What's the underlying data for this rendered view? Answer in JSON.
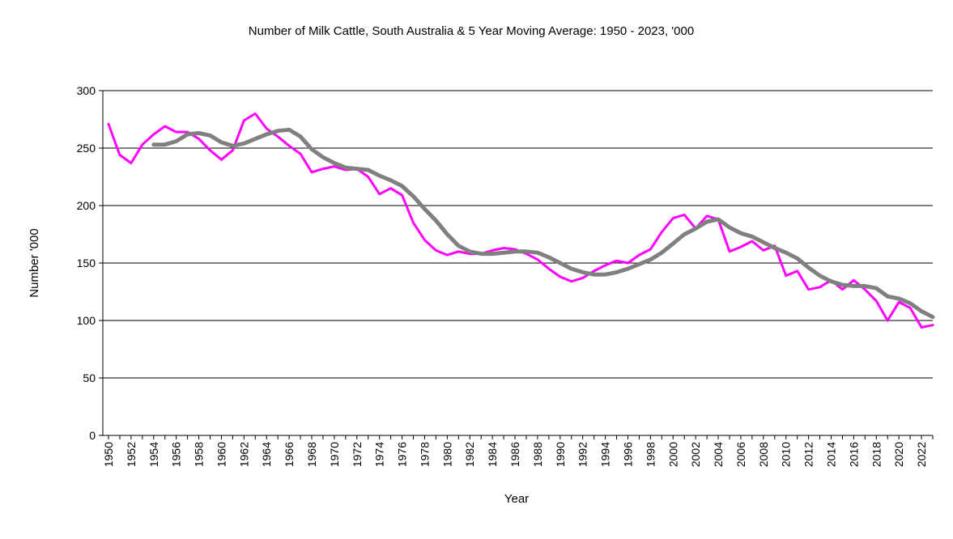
{
  "chart_data": {
    "type": "line",
    "title": "Number of Milk Cattle, South Australia & 5 Year Moving Average: 1950 - 2023, '000",
    "xlabel": "Year",
    "ylabel": "Number '000",
    "ylim": [
      0,
      300
    ],
    "yticks": [
      0,
      50,
      100,
      150,
      200,
      250,
      300
    ],
    "xlim": [
      1950,
      2023
    ],
    "xticks": [
      1950,
      1952,
      1954,
      1956,
      1958,
      1960,
      1962,
      1964,
      1966,
      1968,
      1970,
      1972,
      1974,
      1976,
      1978,
      1980,
      1982,
      1984,
      1986,
      1988,
      1990,
      1992,
      1994,
      1996,
      1998,
      2000,
      2002,
      2004,
      2006,
      2008,
      2010,
      2012,
      2014,
      2016,
      2018,
      2020,
      2022
    ],
    "grid": true,
    "series": [
      {
        "name": "Number of Milk Cattle",
        "color": "#FF00FF",
        "x": [
          1950,
          1951,
          1952,
          1953,
          1954,
          1955,
          1956,
          1957,
          1958,
          1959,
          1960,
          1961,
          1962,
          1963,
          1964,
          1965,
          1966,
          1967,
          1968,
          1969,
          1970,
          1971,
          1972,
          1973,
          1974,
          1975,
          1976,
          1977,
          1978,
          1979,
          1980,
          1981,
          1982,
          1983,
          1984,
          1985,
          1986,
          1987,
          1988,
          1989,
          1990,
          1991,
          1992,
          1993,
          1994,
          1995,
          1996,
          1997,
          1998,
          1999,
          2000,
          2001,
          2002,
          2003,
          2004,
          2005,
          2006,
          2007,
          2008,
          2009,
          2010,
          2011,
          2012,
          2013,
          2014,
          2015,
          2016,
          2017,
          2018,
          2019,
          2020,
          2021,
          2022,
          2023
        ],
        "values": [
          271,
          244,
          237,
          253,
          262,
          269,
          264,
          264,
          258,
          248,
          240,
          248,
          274,
          280,
          267,
          260,
          252,
          245,
          229,
          232,
          234,
          231,
          232,
          225,
          210,
          215,
          209,
          185,
          170,
          161,
          157,
          160,
          158,
          158,
          161,
          163,
          162,
          158,
          153,
          145,
          138,
          134,
          137,
          143,
          148,
          152,
          150,
          157,
          162,
          177,
          189,
          192,
          180,
          191,
          188,
          160,
          164,
          169,
          161,
          165,
          139,
          143,
          127,
          129,
          135,
          127,
          135,
          127,
          117,
          100,
          116,
          111,
          94,
          96
        ]
      },
      {
        "name": "5 Year Moving Average",
        "color": "#808080",
        "x": [
          1954,
          1955,
          1956,
          1957,
          1958,
          1959,
          1960,
          1961,
          1962,
          1963,
          1964,
          1965,
          1966,
          1967,
          1968,
          1969,
          1970,
          1971,
          1972,
          1973,
          1974,
          1975,
          1976,
          1977,
          1978,
          1979,
          1980,
          1981,
          1982,
          1983,
          1984,
          1985,
          1986,
          1987,
          1988,
          1989,
          1990,
          1991,
          1992,
          1993,
          1994,
          1995,
          1996,
          1997,
          1998,
          1999,
          2000,
          2001,
          2002,
          2003,
          2004,
          2005,
          2006,
          2007,
          2008,
          2009,
          2010,
          2011,
          2012,
          2013,
          2014,
          2015,
          2016,
          2017,
          2018,
          2019,
          2020,
          2021,
          2022,
          2023
        ],
        "values": [
          253,
          253,
          256,
          262,
          263,
          261,
          255,
          252,
          254,
          258,
          262,
          265,
          266,
          260,
          249,
          242,
          237,
          233,
          232,
          231,
          226,
          222,
          217,
          208,
          197,
          187,
          175,
          165,
          160,
          158,
          158,
          159,
          160,
          160,
          159,
          155,
          150,
          145,
          142,
          140,
          140,
          142,
          145,
          149,
          153,
          159,
          167,
          175,
          180,
          186,
          188,
          181,
          176,
          173,
          168,
          163,
          159,
          154,
          146,
          139,
          134,
          131,
          130,
          130,
          128,
          121,
          119,
          115,
          108,
          103
        ]
      }
    ]
  }
}
